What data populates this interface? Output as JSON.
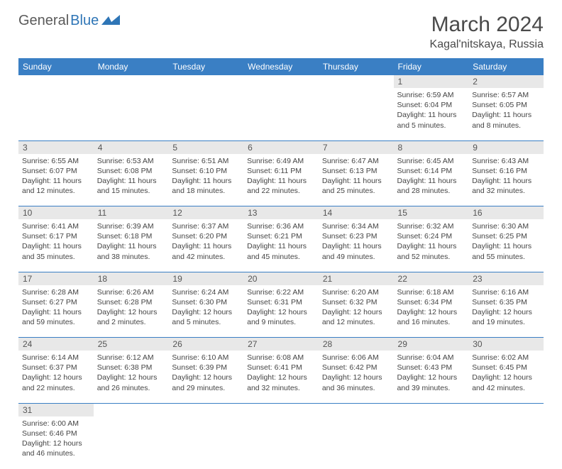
{
  "brand": {
    "part1": "General",
    "part2": "Blue"
  },
  "title": "March 2024",
  "location": "Kagal'nitskaya, Russia",
  "colors": {
    "header_bg": "#3a7fc4",
    "header_text": "#ffffff",
    "daynum_bg": "#e8e8e8",
    "day_border": "#3a7fc4",
    "logo_gray": "#5a5a5a",
    "logo_blue": "#2e75b6",
    "body_text": "#444444"
  },
  "weekdays": [
    "Sunday",
    "Monday",
    "Tuesday",
    "Wednesday",
    "Thursday",
    "Friday",
    "Saturday"
  ],
  "weeks": [
    {
      "nums": [
        "",
        "",
        "",
        "",
        "",
        "1",
        "2"
      ],
      "cells": [
        null,
        null,
        null,
        null,
        null,
        {
          "sunrise": "6:59 AM",
          "sunset": "6:04 PM",
          "daylight": "11 hours and 5 minutes."
        },
        {
          "sunrise": "6:57 AM",
          "sunset": "6:05 PM",
          "daylight": "11 hours and 8 minutes."
        }
      ]
    },
    {
      "nums": [
        "3",
        "4",
        "5",
        "6",
        "7",
        "8",
        "9"
      ],
      "cells": [
        {
          "sunrise": "6:55 AM",
          "sunset": "6:07 PM",
          "daylight": "11 hours and 12 minutes."
        },
        {
          "sunrise": "6:53 AM",
          "sunset": "6:08 PM",
          "daylight": "11 hours and 15 minutes."
        },
        {
          "sunrise": "6:51 AM",
          "sunset": "6:10 PM",
          "daylight": "11 hours and 18 minutes."
        },
        {
          "sunrise": "6:49 AM",
          "sunset": "6:11 PM",
          "daylight": "11 hours and 22 minutes."
        },
        {
          "sunrise": "6:47 AM",
          "sunset": "6:13 PM",
          "daylight": "11 hours and 25 minutes."
        },
        {
          "sunrise": "6:45 AM",
          "sunset": "6:14 PM",
          "daylight": "11 hours and 28 minutes."
        },
        {
          "sunrise": "6:43 AM",
          "sunset": "6:16 PM",
          "daylight": "11 hours and 32 minutes."
        }
      ]
    },
    {
      "nums": [
        "10",
        "11",
        "12",
        "13",
        "14",
        "15",
        "16"
      ],
      "cells": [
        {
          "sunrise": "6:41 AM",
          "sunset": "6:17 PM",
          "daylight": "11 hours and 35 minutes."
        },
        {
          "sunrise": "6:39 AM",
          "sunset": "6:18 PM",
          "daylight": "11 hours and 38 minutes."
        },
        {
          "sunrise": "6:37 AM",
          "sunset": "6:20 PM",
          "daylight": "11 hours and 42 minutes."
        },
        {
          "sunrise": "6:36 AM",
          "sunset": "6:21 PM",
          "daylight": "11 hours and 45 minutes."
        },
        {
          "sunrise": "6:34 AM",
          "sunset": "6:23 PM",
          "daylight": "11 hours and 49 minutes."
        },
        {
          "sunrise": "6:32 AM",
          "sunset": "6:24 PM",
          "daylight": "11 hours and 52 minutes."
        },
        {
          "sunrise": "6:30 AM",
          "sunset": "6:25 PM",
          "daylight": "11 hours and 55 minutes."
        }
      ]
    },
    {
      "nums": [
        "17",
        "18",
        "19",
        "20",
        "21",
        "22",
        "23"
      ],
      "cells": [
        {
          "sunrise": "6:28 AM",
          "sunset": "6:27 PM",
          "daylight": "11 hours and 59 minutes."
        },
        {
          "sunrise": "6:26 AM",
          "sunset": "6:28 PM",
          "daylight": "12 hours and 2 minutes."
        },
        {
          "sunrise": "6:24 AM",
          "sunset": "6:30 PM",
          "daylight": "12 hours and 5 minutes."
        },
        {
          "sunrise": "6:22 AM",
          "sunset": "6:31 PM",
          "daylight": "12 hours and 9 minutes."
        },
        {
          "sunrise": "6:20 AM",
          "sunset": "6:32 PM",
          "daylight": "12 hours and 12 minutes."
        },
        {
          "sunrise": "6:18 AM",
          "sunset": "6:34 PM",
          "daylight": "12 hours and 16 minutes."
        },
        {
          "sunrise": "6:16 AM",
          "sunset": "6:35 PM",
          "daylight": "12 hours and 19 minutes."
        }
      ]
    },
    {
      "nums": [
        "24",
        "25",
        "26",
        "27",
        "28",
        "29",
        "30"
      ],
      "cells": [
        {
          "sunrise": "6:14 AM",
          "sunset": "6:37 PM",
          "daylight": "12 hours and 22 minutes."
        },
        {
          "sunrise": "6:12 AM",
          "sunset": "6:38 PM",
          "daylight": "12 hours and 26 minutes."
        },
        {
          "sunrise": "6:10 AM",
          "sunset": "6:39 PM",
          "daylight": "12 hours and 29 minutes."
        },
        {
          "sunrise": "6:08 AM",
          "sunset": "6:41 PM",
          "daylight": "12 hours and 32 minutes."
        },
        {
          "sunrise": "6:06 AM",
          "sunset": "6:42 PM",
          "daylight": "12 hours and 36 minutes."
        },
        {
          "sunrise": "6:04 AM",
          "sunset": "6:43 PM",
          "daylight": "12 hours and 39 minutes."
        },
        {
          "sunrise": "6:02 AM",
          "sunset": "6:45 PM",
          "daylight": "12 hours and 42 minutes."
        }
      ]
    },
    {
      "nums": [
        "31",
        "",
        "",
        "",
        "",
        "",
        ""
      ],
      "cells": [
        {
          "sunrise": "6:00 AM",
          "sunset": "6:46 PM",
          "daylight": "12 hours and 46 minutes."
        },
        null,
        null,
        null,
        null,
        null,
        null
      ]
    }
  ],
  "labels": {
    "sunrise": "Sunrise:",
    "sunset": "Sunset:",
    "daylight": "Daylight:"
  }
}
